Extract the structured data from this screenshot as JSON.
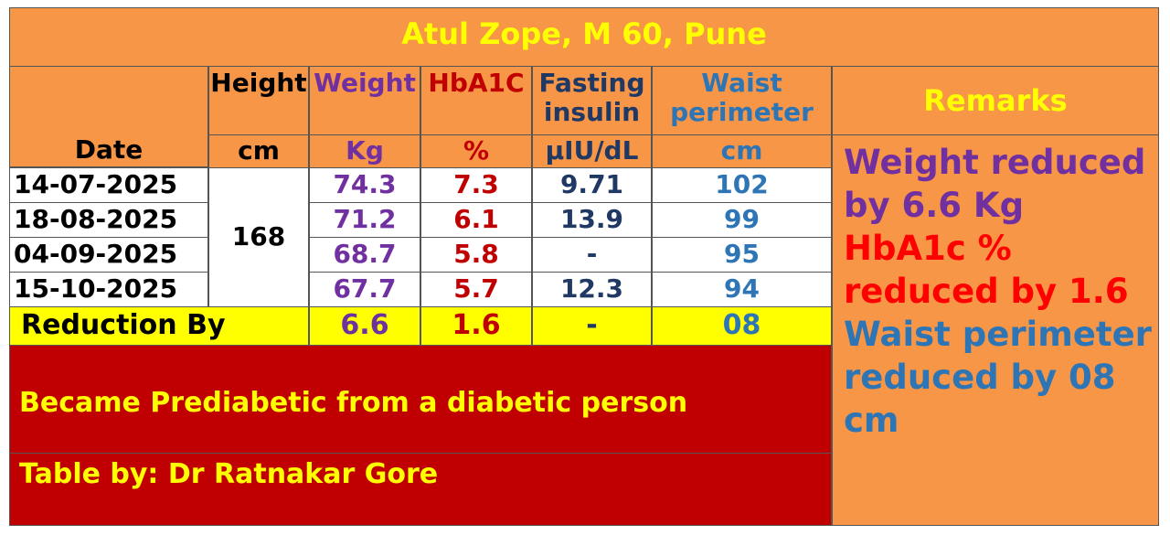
{
  "title": "Atul Zope, M 60, Pune",
  "header": {
    "date": "Date",
    "remarks": "Remarks",
    "columns": [
      {
        "name": "Height",
        "unit": "cm"
      },
      {
        "name": "Weight",
        "unit": "Kg"
      },
      {
        "name": "HbA1C",
        "unit": "%"
      },
      {
        "name": "Fasting insulin",
        "unit": "µIU/dL"
      },
      {
        "name": "Waist perimeter",
        "unit": "cm"
      }
    ]
  },
  "height": 168,
  "rows": [
    {
      "date": "14-07-2025",
      "weight": 74.3,
      "hba1c": 7.3,
      "insulin": 9.71,
      "waist": 102
    },
    {
      "date": "18-08-2025",
      "weight": 71.2,
      "hba1c": 6.1,
      "insulin": 13.9,
      "waist": 99
    },
    {
      "date": "04-09-2025",
      "weight": 68.7,
      "hba1c": 5.8,
      "insulin": "-",
      "waist": 95
    },
    {
      "date": "15-10-2025",
      "weight": 67.7,
      "hba1c": 5.7,
      "insulin": 12.3,
      "waist": 94
    }
  ],
  "reduction": {
    "label": "Reduction By",
    "weight": 6.6,
    "hba1c": 1.6,
    "insulin": "-",
    "waist": "08"
  },
  "notes": [
    "Became Prediabetic from a diabetic person",
    "Table by: Dr Ratnakar Gore"
  ],
  "remarks": [
    "Weight reduced by 6.6 Kg",
    "HbA1c % reduced by 1.6",
    "Waist perimeter reduced by 08 cm"
  ]
}
